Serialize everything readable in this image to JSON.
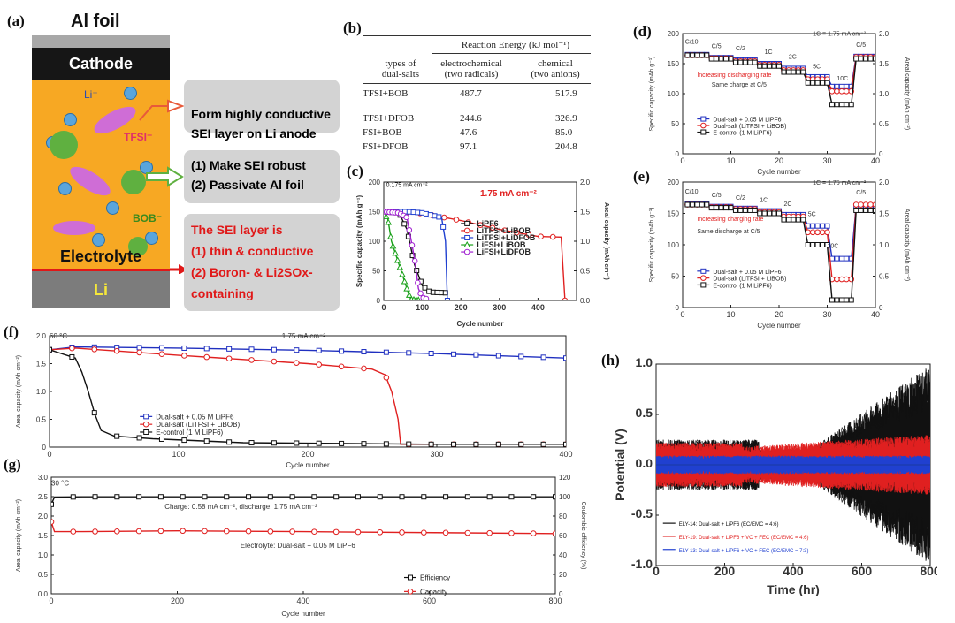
{
  "panels": {
    "a": {
      "tag": "(a)",
      "title": "Al foil",
      "cathode": "Cathode",
      "electrolyte": "Electrolyte",
      "li": "Li",
      "ion_li": "Li⁺",
      "ion_tfsi": "TFSI⁻",
      "ion_bob": "BOB⁻",
      "box1": "Form highly conductive\nSEI layer on Li anode",
      "box2_l1": "(1) Make SEI robust",
      "box2_l2": "(2) Passivate Al foil",
      "box3_l1": "The SEI layer is",
      "box3_l2": "(1) thin & conductive",
      "box3_l3": "(2) Boron- & Li2SOx-",
      "box3_l4": "containing"
    },
    "b": {
      "tag": "(b)",
      "header": "Reaction Energy (kJ mol⁻¹)",
      "col0": "types of",
      "col0b": "dual-salts",
      "col1": "electrochemical",
      "col1b": "(two radicals)",
      "col2": "chemical",
      "col2b": "(two anions)",
      "rows": [
        {
          "name": "TFSI+BOB",
          "e": "487.7",
          "c": "517.9"
        },
        {
          "name": "TFSI+DFOB",
          "e": "244.6",
          "c": "326.9"
        },
        {
          "name": "FSI+BOB",
          "e": "47.6",
          "c": "85.0"
        },
        {
          "name": "FSI+DFOB",
          "e": "97.1",
          "c": "204.8"
        }
      ]
    },
    "c": {
      "tag": "(c)"
    },
    "d": {
      "tag": "(d)"
    },
    "e": {
      "tag": "(e)"
    },
    "f": {
      "tag": "(f)"
    },
    "g": {
      "tag": "(g)"
    },
    "h": {
      "tag": "(h)"
    }
  },
  "chart_data": [
    {
      "id": "c",
      "type": "line",
      "xlabel": "Cycle number",
      "ylabel": "Specific capacity (mAh g⁻¹)",
      "y2label": "Areal capacity (mAh cm⁻²)",
      "xlim": [
        0,
        500
      ],
      "ylim": [
        0,
        200
      ],
      "y2lim": [
        0,
        2.0
      ],
      "xticks": [
        "0",
        "100",
        "200",
        "300",
        "400"
      ],
      "yticks": [
        "0",
        "50",
        "100",
        "150",
        "200"
      ],
      "y2ticks": [
        "0.0",
        "0.5",
        "1.0",
        "1.5",
        "2.0"
      ],
      "annotations": [
        "0.175 mA cm⁻²",
        "1.75 mA cm⁻²"
      ],
      "series": [
        {
          "name": "LiPF6",
          "color": "#111111",
          "x": [
            0,
            40,
            60,
            80,
            100,
            120,
            160
          ],
          "values": [
            150,
            148,
            120,
            60,
            25,
            14,
            13
          ]
        },
        {
          "name": "LiTFSI+LiBOB",
          "color": "#e02020",
          "x": [
            0,
            50,
            100,
            200,
            300,
            400,
            460,
            470
          ],
          "values": [
            150,
            150,
            147,
            135,
            120,
            108,
            107,
            0
          ]
        },
        {
          "name": "LiTFSI+LiDFOB",
          "color": "#2040d0",
          "x": [
            0,
            60,
            100,
            150,
            160,
            165
          ],
          "values": [
            150,
            150,
            148,
            140,
            100,
            0
          ]
        },
        {
          "name": "LiFSI+LiBOB",
          "color": "#18a018",
          "x": [
            0,
            10,
            20,
            40,
            60,
            70,
            90
          ],
          "values": [
            145,
            140,
            100,
            60,
            20,
            2,
            1
          ]
        },
        {
          "name": "LiFSI+LiDFOB",
          "color": "#a020d0",
          "x": [
            0,
            40,
            60,
            80,
            90,
            100,
            110
          ],
          "values": [
            150,
            148,
            140,
            70,
            20,
            5,
            3
          ]
        }
      ]
    },
    {
      "id": "d",
      "type": "line",
      "xlabel": "Cycle number",
      "ylabel": "Specific capacity (mAh g⁻¹)",
      "y2label": "Areal capacity (mAh cm⁻²)",
      "xlim": [
        0,
        40
      ],
      "ylim": [
        0,
        200
      ],
      "y2lim": [
        0,
        2.0
      ],
      "xticks": [
        "0",
        "10",
        "20",
        "30",
        "40"
      ],
      "yticks": [
        "0",
        "50",
        "100",
        "150",
        "200"
      ],
      "y2ticks": [
        "0",
        "0.5",
        "1.0",
        "1.5",
        "2.0"
      ],
      "annotations": [
        "1C = 1.75 mA cm⁻²",
        "Increasing discharging rate",
        "Same charge at C/5",
        "C/10",
        "C/5",
        "C/2",
        "1C",
        "2C",
        "5C",
        "10C",
        "C/5"
      ],
      "series": [
        {
          "name": "Dual-salt + 0.05 M LiPF6",
          "color": "#2030c0",
          "x": [
            1,
            5,
            6,
            10,
            11,
            15,
            16,
            20,
            21,
            25,
            26,
            30,
            31,
            35,
            36,
            40
          ],
          "values": [
            165,
            165,
            160,
            160,
            156,
            156,
            150,
            150,
            142,
            142,
            128,
            128,
            112,
            112,
            162,
            162
          ]
        },
        {
          "name": "Dual-salt (LiTFSI + LiBOB)",
          "color": "#e02020",
          "x": [
            1,
            5,
            6,
            10,
            11,
            15,
            16,
            20,
            21,
            25,
            26,
            30,
            31,
            35,
            36,
            40
          ],
          "values": [
            164,
            164,
            159,
            159,
            154,
            154,
            148,
            148,
            139,
            139,
            124,
            124,
            104,
            104,
            161,
            161
          ]
        },
        {
          "name": "E-control (1 M LiPF6)",
          "color": "#111111",
          "x": [
            1,
            5,
            6,
            10,
            11,
            15,
            16,
            20,
            21,
            25,
            26,
            30,
            31,
            35,
            36,
            40
          ],
          "values": [
            164,
            164,
            158,
            158,
            152,
            152,
            146,
            146,
            136,
            136,
            118,
            118,
            82,
            82,
            158,
            158
          ]
        }
      ]
    },
    {
      "id": "e",
      "type": "line",
      "xlabel": "Cycle number",
      "ylabel": "Specific capacity (mAh g⁻¹)",
      "y2label": "Areal capacity (mAh cm⁻²)",
      "xlim": [
        0,
        40
      ],
      "ylim": [
        0,
        200
      ],
      "y2lim": [
        0,
        2.0
      ],
      "xticks": [
        "0",
        "10",
        "20",
        "30",
        "40"
      ],
      "yticks": [
        "0",
        "50",
        "100",
        "150",
        "200"
      ],
      "y2ticks": [
        "0",
        "0.5",
        "1.0",
        "1.5",
        "2.0"
      ],
      "annotations": [
        "1C = 1.75 mA cm⁻²",
        "Increasing charging rate",
        "Same discharge at C/5",
        "C/10",
        "C/5",
        "C/2",
        "1C",
        "2C",
        "5C",
        "10C",
        "C/5"
      ],
      "series": [
        {
          "name": "Dual-salt + 0.05 M LiPF6",
          "color": "#2030c0",
          "x": [
            1,
            5,
            6,
            10,
            11,
            15,
            16,
            20,
            21,
            25,
            26,
            30,
            31,
            35,
            36,
            40
          ],
          "values": [
            165,
            165,
            161,
            161,
            158,
            158,
            154,
            154,
            148,
            148,
            130,
            130,
            78,
            78,
            162,
            162
          ]
        },
        {
          "name": "Dual-salt (LiTFSI + LiBOB)",
          "color": "#e02020",
          "x": [
            1,
            5,
            6,
            10,
            11,
            15,
            16,
            20,
            21,
            25,
            26,
            30,
            31,
            35,
            36,
            40
          ],
          "values": [
            164,
            164,
            160,
            160,
            157,
            157,
            152,
            152,
            145,
            145,
            120,
            120,
            45,
            45,
            164,
            164
          ]
        },
        {
          "name": "E-control (1 M LiPF6)",
          "color": "#111111",
          "x": [
            1,
            5,
            6,
            10,
            11,
            15,
            16,
            20,
            21,
            25,
            26,
            30,
            31,
            35,
            36,
            40
          ],
          "values": [
            164,
            164,
            159,
            159,
            155,
            155,
            150,
            150,
            140,
            140,
            100,
            100,
            12,
            12,
            155,
            155
          ]
        }
      ]
    },
    {
      "id": "f",
      "type": "line",
      "xlabel": "Cycle number",
      "ylabel": "Areal capacity (mAh cm⁻²)",
      "xlim": [
        0,
        400
      ],
      "ylim": [
        0,
        2.0
      ],
      "xticks": [
        "0",
        "100",
        "200",
        "300",
        "400"
      ],
      "yticks": [
        "0",
        "0.5",
        "1.0",
        "1.5",
        "2.0"
      ],
      "annotations": [
        "60 °C",
        "1.75 mA cm⁻²"
      ],
      "series": [
        {
          "name": "Dual-salt + 0.05 M LiPF6",
          "color": "#2030c0",
          "x": [
            0,
            20,
            100,
            200,
            300,
            400
          ],
          "values": [
            1.75,
            1.8,
            1.78,
            1.74,
            1.68,
            1.6
          ]
        },
        {
          "name": "Dual-salt (LiTFSI + LiBOB)",
          "color": "#e02020",
          "x": [
            0,
            20,
            100,
            200,
            250,
            260,
            265,
            270,
            272,
            280,
            400
          ],
          "values": [
            1.75,
            1.78,
            1.65,
            1.5,
            1.4,
            1.3,
            1.0,
            0.5,
            0.05,
            0.05,
            0.05
          ]
        },
        {
          "name": "E-control (1 M LiPF6)",
          "color": "#111111",
          "x": [
            0,
            20,
            25,
            30,
            35,
            40,
            50,
            80,
            150,
            300,
            400
          ],
          "values": [
            1.75,
            1.6,
            1.35,
            1.0,
            0.6,
            0.3,
            0.2,
            0.15,
            0.08,
            0.05,
            0.05
          ]
        }
      ]
    },
    {
      "id": "g",
      "type": "line",
      "xlabel": "Cycle number",
      "ylabel": "Areal capacity (mAh cm⁻²)",
      "y2label": "Coulombic efficiency (%)",
      "xlim": [
        0,
        800
      ],
      "ylim": [
        0,
        3.0
      ],
      "y2lim": [
        0,
        120
      ],
      "xticks": [
        "0",
        "200",
        "400",
        "600",
        "800"
      ],
      "yticks": [
        "0.0",
        "0.5",
        "1.0",
        "1.5",
        "2.0",
        "2.5",
        "3.0"
      ],
      "y2ticks": [
        "0",
        "20",
        "40",
        "60",
        "80",
        "100",
        "120"
      ],
      "annotations": [
        "30 °C",
        "Charge: 0.58 mA cm⁻², discharge: 1.75 mA cm⁻²",
        "Electrolyte: Dual-salt + 0.05 M LiPF6"
      ],
      "series": [
        {
          "name": "Efficiency",
          "color": "#111111",
          "axis": "right",
          "x": [
            0,
            5,
            50,
            400,
            800
          ],
          "values": [
            92,
            99.5,
            99.8,
            99.8,
            99.8
          ]
        },
        {
          "name": "Capacity",
          "color": "#e02020",
          "x": [
            0,
            5,
            50,
            200,
            400,
            800
          ],
          "values": [
            1.85,
            1.6,
            1.6,
            1.62,
            1.6,
            1.55
          ]
        }
      ]
    },
    {
      "id": "h",
      "type": "line",
      "xlabel": "Time (hr)",
      "ylabel": "Potential (V)",
      "xlim": [
        0,
        800
      ],
      "ylim": [
        -1.0,
        1.0
      ],
      "xticks": [
        "0",
        "200",
        "400",
        "600",
        "800"
      ],
      "yticks": [
        "-1.0",
        "-0.5",
        "0.0",
        "0.5",
        "1.0"
      ],
      "series": [
        {
          "name": "ELY-14: Dual-salt + LiPF6 (EC/EMC = 4:6)",
          "color": "#111111"
        },
        {
          "name": "ELY-19: Dual-salt + LiPF6 + VC + FEC (EC/EMC = 4:6)",
          "color": "#e02020"
        },
        {
          "name": "ELY-13: Dual-salt + LiPF6 + VC + FEC (EC/EMC = 7:3)",
          "color": "#2040d0"
        }
      ]
    }
  ]
}
